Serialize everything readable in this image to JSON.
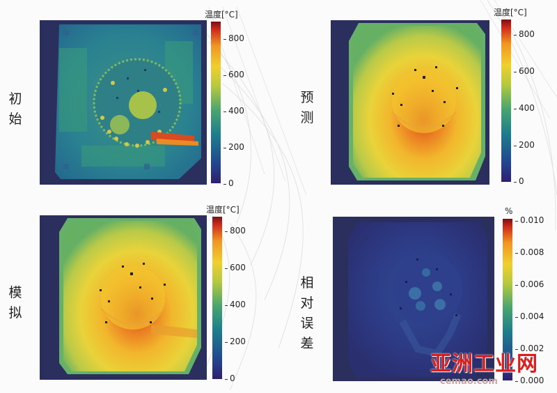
{
  "labels": {
    "initial": "初\n始",
    "predicted": "预\n测",
    "simulated": "模\n拟",
    "relative_error": "相\n对\n误\n差"
  },
  "colorbar_temp": {
    "title": "温度[°C]",
    "ticks": [
      "800",
      "600",
      "400",
      "200",
      "0"
    ]
  },
  "colorbar_error": {
    "title": "%",
    "ticks": [
      "0.010",
      "0.008",
      "0.006",
      "0.004",
      "0.002",
      "0.000"
    ]
  },
  "watermark": {
    "text": "亚洲工业网",
    "url": "cemao.com"
  },
  "colors": {
    "colormap": [
      "#2e1f6e",
      "#23468f",
      "#1e7d8d",
      "#49a56e",
      "#b5c940",
      "#f0cf2e",
      "#f09623",
      "#cf2b1c",
      "#7c0f12"
    ]
  }
}
